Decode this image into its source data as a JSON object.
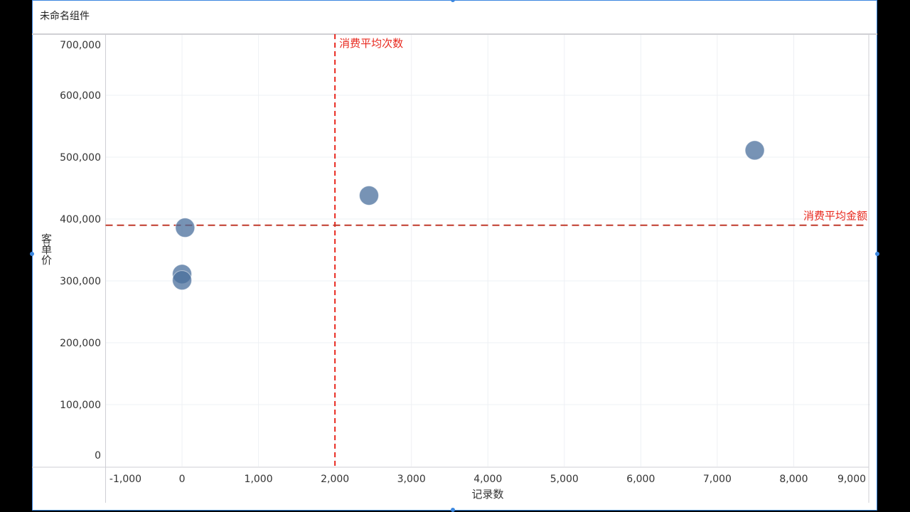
{
  "component": {
    "title": "未命名组件"
  },
  "chart_data": {
    "type": "scatter",
    "xlabel": "记录数",
    "ylabel": "客单价",
    "xlim": [
      -1000,
      9000
    ],
    "ylim": [
      0,
      700000
    ],
    "x_ticks": [
      -1000,
      0,
      1000,
      2000,
      3000,
      4000,
      5000,
      6000,
      7000,
      8000,
      9000
    ],
    "x_tick_labels": [
      "-1,000",
      "0",
      "1,000",
      "2,000",
      "3,000",
      "4,000",
      "5,000",
      "6,000",
      "7,000",
      "8,000",
      "9,000"
    ],
    "y_ticks": [
      0,
      100000,
      200000,
      300000,
      400000,
      500000,
      600000,
      700000
    ],
    "y_tick_labels": [
      "0",
      "100,000",
      "200,000",
      "300,000",
      "400,000",
      "500,000",
      "600,000",
      "700,000"
    ],
    "grid": true,
    "point_color": "#4a6f9c",
    "points": [
      {
        "x": 7490,
        "y": 511000
      },
      {
        "x": 2445,
        "y": 438000
      },
      {
        "x": 40,
        "y": 386000
      },
      {
        "x": 0,
        "y": 311000
      },
      {
        "x": 0,
        "y": 301000
      }
    ],
    "reference_lines": [
      {
        "axis": "x",
        "value": 2000,
        "label": "消费平均次数",
        "color": "#e8281e"
      },
      {
        "axis": "y",
        "value": 390000,
        "label": "消费平均金额",
        "color": "#c0392b"
      }
    ]
  }
}
